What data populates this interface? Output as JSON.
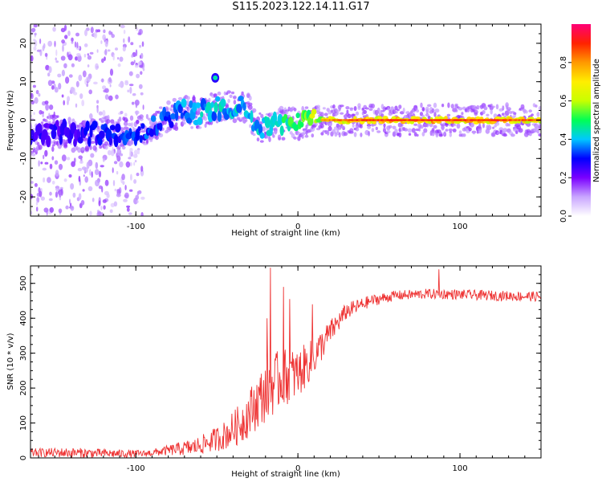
{
  "figure_title": "S115.2023.122.14.11.G17",
  "chart_data": [
    {
      "type": "heatmap",
      "title": "",
      "xlabel": "Height of straight line (km)",
      "ylabel": "Frequency (Hz)",
      "xlim": [
        -165,
        150
      ],
      "ylim": [
        -25,
        25
      ],
      "x_ticks": [
        -100,
        0,
        100
      ],
      "y_ticks": [
        -20,
        -10,
        0,
        10,
        20
      ],
      "colorbar": {
        "label": "Normalized spectral amplitude",
        "range": [
          0,
          1
        ],
        "ticks": [
          "0.0",
          "0.2",
          "0.4",
          "0.6",
          "0.8"
        ],
        "colors": [
          "#ffffff",
          "#c9a6ff",
          "#7a00ff",
          "#0000ff",
          "#00c8ff",
          "#00ff55",
          "#c8ff00",
          "#ffee00",
          "#ff9900",
          "#ff2200",
          "#ff0077"
        ]
      },
      "ridge": [
        {
          "x": -165,
          "freq": -5.0,
          "amp": 0.32
        },
        {
          "x": -150,
          "freq": -2.5,
          "amp": 0.32
        },
        {
          "x": -135,
          "freq": -4.5,
          "amp": 0.34
        },
        {
          "x": -120,
          "freq": -3.0,
          "amp": 0.38
        },
        {
          "x": -105,
          "freq": -3.5,
          "amp": 0.42
        },
        {
          "x": -90,
          "freq": -2.0,
          "amp": 0.42
        },
        {
          "x": -80,
          "freq": 1.0,
          "amp": 0.42
        },
        {
          "x": -70,
          "freq": 2.5,
          "amp": 0.48
        },
        {
          "x": -60,
          "freq": 1.5,
          "amp": 0.5
        },
        {
          "x": -50,
          "freq": 3.5,
          "amp": 0.5
        },
        {
          "x": -40,
          "freq": 3.5,
          "amp": 0.52
        },
        {
          "x": -30,
          "freq": 3.0,
          "amp": 0.52
        },
        {
          "x": -26,
          "freq": -2.0,
          "amp": 0.5
        },
        {
          "x": -15,
          "freq": -1.0,
          "amp": 0.58
        },
        {
          "x": 0,
          "freq": -0.8,
          "amp": 0.66
        },
        {
          "x": 15,
          "freq": 0.0,
          "amp": 0.8
        },
        {
          "x": 40,
          "freq": 0.0,
          "amp": 0.9
        },
        {
          "x": 80,
          "freq": 0.0,
          "amp": 0.92
        },
        {
          "x": 120,
          "freq": 0.0,
          "amp": 0.9
        },
        {
          "x": 150,
          "freq": 0.0,
          "amp": 0.85
        }
      ],
      "side_band": {
        "x": -51,
        "freq": 11.0,
        "amp": 0.45
      },
      "noise_scatter_x_range": [
        -165,
        -95
      ]
    },
    {
      "type": "line",
      "title": "",
      "xlabel": "Height of straight line (km)",
      "ylabel": "SNR (10 * v/v)",
      "xlim": [
        -165,
        150
      ],
      "ylim": [
        0,
        550
      ],
      "x_ticks": [
        -100,
        0,
        100
      ],
      "y_ticks": [
        0,
        100,
        200,
        300,
        400,
        500
      ],
      "color": "#ee3333",
      "envelope": {
        "x": [
          -165,
          -140,
          -110,
          -95,
          -85,
          -75,
          -65,
          -55,
          -45,
          -35,
          -25,
          -18,
          -10,
          0,
          10,
          20,
          30,
          45,
          60,
          80,
          100,
          120,
          150
        ],
        "mean": [
          15,
          15,
          12,
          12,
          18,
          25,
          30,
          45,
          65,
          100,
          160,
          200,
          230,
          240,
          290,
          360,
          420,
          450,
          465,
          470,
          468,
          465,
          462
        ],
        "jitter": [
          10,
          12,
          10,
          8,
          10,
          15,
          20,
          25,
          35,
          50,
          65,
          75,
          70,
          60,
          45,
          30,
          20,
          14,
          12,
          12,
          12,
          12,
          12
        ]
      },
      "spikes": [
        {
          "x": -17,
          "value": 545
        },
        {
          "x": -19,
          "value": 400
        },
        {
          "x": -9,
          "value": 490
        },
        {
          "x": -5,
          "value": 455
        },
        {
          "x": 9,
          "value": 440
        },
        {
          "x": 87,
          "value": 540
        }
      ]
    }
  ]
}
